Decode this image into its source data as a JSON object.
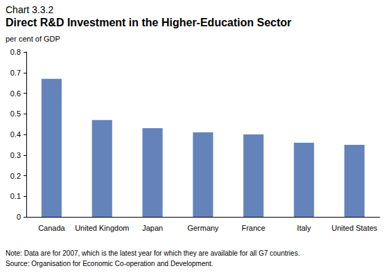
{
  "chart_data": {
    "type": "bar",
    "subtitle": "Chart 3.3.2",
    "title": "Direct R&D Investment in the Higher-Education Sector",
    "y_label": "per cent of GDP",
    "categories": [
      "Canada",
      "United Kingdom",
      "Japan",
      "Germany",
      "France",
      "Italy",
      "United States"
    ],
    "values": [
      0.67,
      0.47,
      0.43,
      0.41,
      0.4,
      0.36,
      0.35
    ],
    "color": "#6483ba",
    "ylim": [
      0,
      0.8
    ],
    "yticks": [
      0,
      0.1,
      0.2,
      0.3,
      0.4,
      0.5,
      0.6,
      0.7,
      0.8
    ],
    "grid": false,
    "annotations": [
      "Note: Data are for 2007, which is the latest year for which they are available for all G7 countries.",
      "Source: Organisation for Economic Co-operation and Development."
    ]
  }
}
